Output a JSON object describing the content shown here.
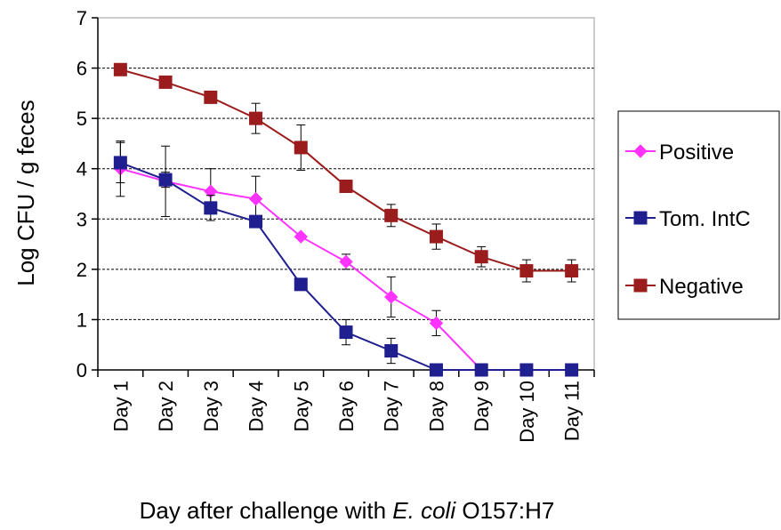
{
  "chart_data": {
    "type": "line",
    "categories": [
      "Day 1",
      "Day 2",
      "Day 3",
      "Day 4",
      "Day 5",
      "Day 6",
      "Day 7",
      "Day 8",
      "Day 9",
      "Day 10",
      "Day 11"
    ],
    "ylabel": "Log CFU / g feces",
    "xlabel": {
      "prefix": "Day after challenge with ",
      "italic": "E. coli",
      "suffix": " O157:H7"
    },
    "ylim": [
      0,
      7
    ],
    "yticks": [
      "0",
      "1",
      "2",
      "3",
      "4",
      "5",
      "6",
      "7"
    ],
    "grid": "horizontal dashed",
    "legend_position": "right",
    "series": [
      {
        "name": "Positive",
        "color": "#ff33ff",
        "marker": "diamond",
        "values": [
          4.0,
          3.75,
          3.55,
          3.4,
          2.65,
          2.15,
          1.45,
          0.93,
          0,
          null,
          null
        ],
        "errors": [
          0.55,
          0.7,
          0.45,
          0.45,
          null,
          0.15,
          0.4,
          0.25,
          null,
          null,
          null
        ]
      },
      {
        "name": "Tom. IntC",
        "color": "#1f1f8f",
        "marker": "square",
        "values": [
          4.12,
          3.78,
          3.22,
          2.95,
          1.7,
          0.75,
          0.38,
          0,
          0,
          0,
          0
        ],
        "errors": [
          0.4,
          0.15,
          0.25,
          0.1,
          0.08,
          0.25,
          0.25,
          null,
          null,
          null,
          null
        ]
      },
      {
        "name": "Negative",
        "color": "#9b1c1c",
        "marker": "square",
        "values": [
          5.97,
          5.72,
          5.42,
          5.0,
          4.42,
          3.65,
          3.07,
          2.65,
          2.25,
          1.97,
          1.97
        ],
        "errors": [
          null,
          null,
          null,
          0.3,
          0.45,
          null,
          0.22,
          0.25,
          0.2,
          0.22,
          0.22
        ]
      }
    ]
  }
}
